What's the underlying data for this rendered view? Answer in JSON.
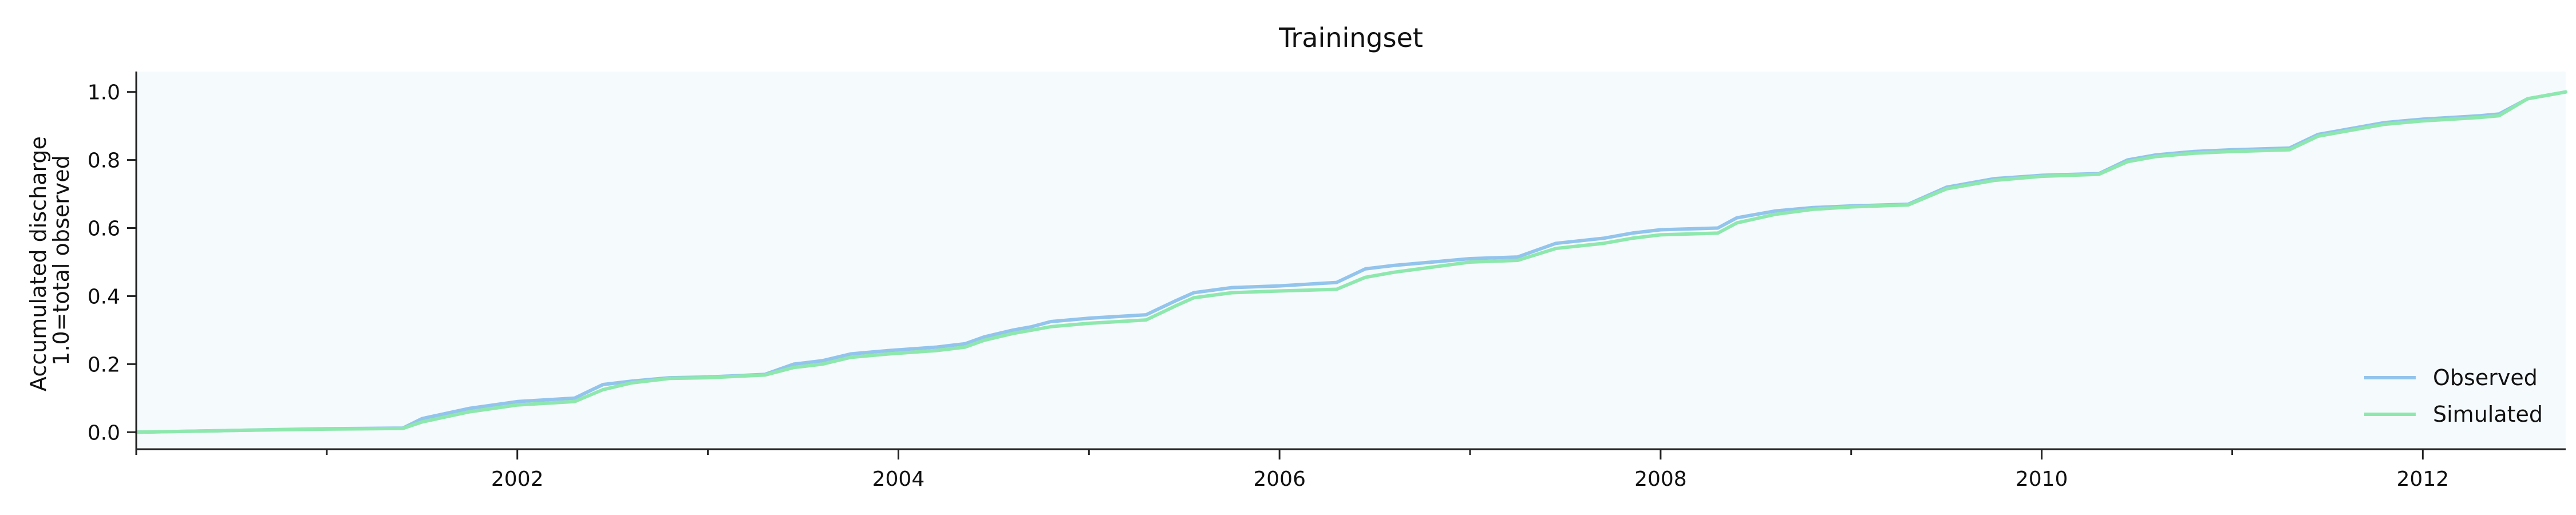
{
  "chart_data": {
    "type": "line",
    "title": "Trainingset",
    "ylabel_lines": [
      "Accumulated discharge",
      "1.0=total observed"
    ],
    "xlabel": "",
    "xlim": [
      2000.0,
      2012.75
    ],
    "ylim": [
      -0.05,
      1.06
    ],
    "x_ticks": [
      2002,
      2004,
      2006,
      2008,
      2010,
      2012
    ],
    "x_tick_labels": [
      "2002",
      "2004",
      "2006",
      "2008",
      "2010",
      "2012"
    ],
    "y_ticks": [
      0.0,
      0.2,
      0.4,
      0.6,
      0.8,
      1.0
    ],
    "y_tick_labels": [
      "0.0",
      "0.2",
      "0.4",
      "0.6",
      "0.8",
      "1.0"
    ],
    "grid": false,
    "background": "#f5fafd",
    "legend_position": "bottom-right",
    "series": [
      {
        "name": "Observed",
        "color": "#93c4ec",
        "x": [
          2000.0,
          2000.5,
          2001.0,
          2001.4,
          2001.5,
          2001.75,
          2002.0,
          2002.3,
          2002.45,
          2002.6,
          2002.8,
          2003.0,
          2003.3,
          2003.45,
          2003.6,
          2003.75,
          2003.95,
          2004.2,
          2004.35,
          2004.45,
          2004.6,
          2004.7,
          2004.8,
          2005.0,
          2005.3,
          2005.45,
          2005.55,
          2005.75,
          2006.0,
          2006.3,
          2006.45,
          2006.6,
          2006.8,
          2007.0,
          2007.25,
          2007.45,
          2007.7,
          2007.85,
          2008.0,
          2008.3,
          2008.4,
          2008.6,
          2008.8,
          2009.0,
          2009.3,
          2009.5,
          2009.75,
          2010.0,
          2010.3,
          2010.45,
          2010.6,
          2010.8,
          2011.0,
          2011.3,
          2011.45,
          2011.6,
          2011.8,
          2012.0,
          2012.3,
          2012.4,
          2012.55,
          2012.75
        ],
        "values": [
          0.0,
          0.005,
          0.01,
          0.012,
          0.04,
          0.07,
          0.09,
          0.1,
          0.14,
          0.15,
          0.16,
          0.162,
          0.17,
          0.2,
          0.21,
          0.23,
          0.24,
          0.25,
          0.26,
          0.28,
          0.3,
          0.31,
          0.325,
          0.335,
          0.345,
          0.385,
          0.41,
          0.425,
          0.43,
          0.44,
          0.48,
          0.49,
          0.5,
          0.51,
          0.515,
          0.555,
          0.57,
          0.585,
          0.595,
          0.6,
          0.63,
          0.65,
          0.66,
          0.665,
          0.67,
          0.72,
          0.745,
          0.755,
          0.76,
          0.8,
          0.815,
          0.825,
          0.83,
          0.835,
          0.875,
          0.89,
          0.91,
          0.92,
          0.93,
          0.935,
          0.98,
          1.0
        ]
      },
      {
        "name": "Simulated",
        "color": "#8ee8ae",
        "x": [
          2000.0,
          2000.5,
          2001.0,
          2001.4,
          2001.5,
          2001.75,
          2002.0,
          2002.3,
          2002.45,
          2002.6,
          2002.8,
          2003.0,
          2003.3,
          2003.45,
          2003.6,
          2003.75,
          2003.95,
          2004.2,
          2004.35,
          2004.45,
          2004.6,
          2004.7,
          2004.8,
          2005.0,
          2005.3,
          2005.45,
          2005.55,
          2005.75,
          2006.0,
          2006.3,
          2006.45,
          2006.6,
          2006.8,
          2007.0,
          2007.25,
          2007.45,
          2007.7,
          2007.85,
          2008.0,
          2008.3,
          2008.4,
          2008.6,
          2008.8,
          2009.0,
          2009.3,
          2009.5,
          2009.75,
          2010.0,
          2010.3,
          2010.45,
          2010.6,
          2010.8,
          2011.0,
          2011.3,
          2011.45,
          2011.6,
          2011.8,
          2012.0,
          2012.3,
          2012.4,
          2012.55,
          2012.75
        ],
        "values": [
          0.0,
          0.005,
          0.009,
          0.011,
          0.03,
          0.06,
          0.08,
          0.09,
          0.125,
          0.145,
          0.158,
          0.16,
          0.168,
          0.19,
          0.2,
          0.22,
          0.23,
          0.24,
          0.25,
          0.27,
          0.29,
          0.3,
          0.31,
          0.32,
          0.33,
          0.37,
          0.395,
          0.41,
          0.415,
          0.42,
          0.455,
          0.47,
          0.485,
          0.5,
          0.505,
          0.54,
          0.555,
          0.57,
          0.58,
          0.585,
          0.615,
          0.64,
          0.655,
          0.662,
          0.668,
          0.715,
          0.74,
          0.752,
          0.758,
          0.795,
          0.81,
          0.82,
          0.825,
          0.83,
          0.87,
          0.885,
          0.905,
          0.915,
          0.925,
          0.93,
          0.98,
          1.0
        ]
      }
    ]
  }
}
